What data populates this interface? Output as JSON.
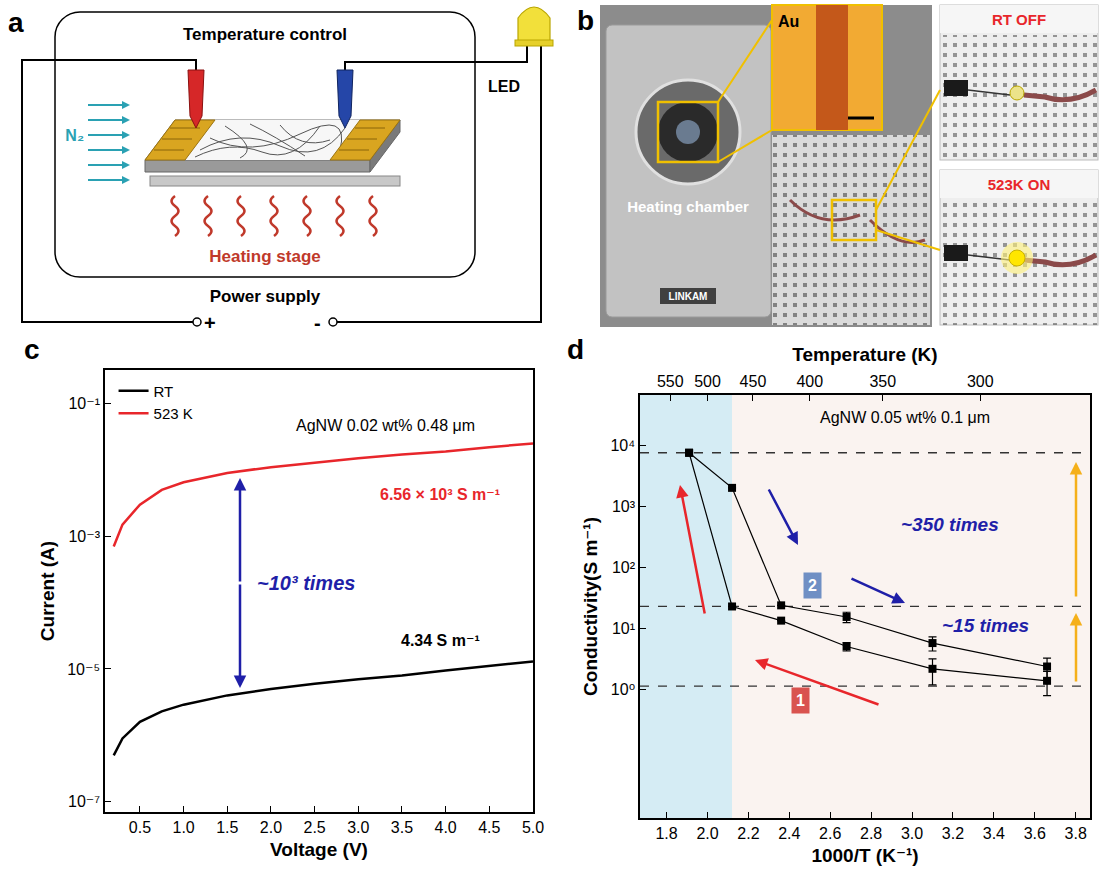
{
  "diagram": {
    "letter": "a",
    "box_title": "Temperature control",
    "gas": "N₂",
    "stage": "Heating stage",
    "led": "LED",
    "supply": "Power supply",
    "plus": "+",
    "minus": "-"
  },
  "photo": {
    "letter": "b",
    "chamber": "Heating chamber",
    "brand": "LINKAM",
    "inset": "Au",
    "off_label": "RT OFF",
    "on_label": "523K ON"
  },
  "chart_data": [
    {
      "panel": "c",
      "type": "line",
      "x_label": "Voltage (V)",
      "y_label": "Current (A)",
      "log": "y",
      "grid": false,
      "legend": "upper left",
      "xlim": [
        0.1,
        5
      ],
      "xticks": [
        0.5,
        {
          "value": 1,
          "label": "1.0"
        },
        1.5,
        {
          "value": 2,
          "label": "2.0"
        },
        2.5,
        {
          "value": 3,
          "label": "3.0"
        },
        3.5,
        {
          "value": 4,
          "label": "4.0"
        },
        4.5,
        {
          "value": 5,
          "label": "5.0"
        }
      ],
      "ylim": [
        7e-08,
        0.32
      ],
      "yticks": [
        {
          "value": 1e-07,
          "label": "10⁻⁷"
        },
        {
          "value": 1e-05,
          "label": "10⁻⁵"
        },
        {
          "value": 0.001,
          "label": "10⁻³"
        },
        {
          "value": 0.1,
          "label": "10⁻¹"
        }
      ],
      "x": [
        0.2,
        0.3,
        0.5,
        0.75,
        1,
        1.5,
        2,
        2.5,
        3,
        3.5,
        4,
        4.5,
        5
      ],
      "series": [
        {
          "name": "RT",
          "color": "#000000",
          "values": [
            5e-07,
            9e-07,
            1.6e-06,
            2.3e-06,
            2.9e-06,
            4e-06,
            5e-06,
            6e-06,
            7e-06,
            8e-06,
            9.5e-06,
            1.1e-05,
            1.3e-05
          ]
        },
        {
          "name": "523 K",
          "color": "#e8262b",
          "values": [
            0.0007,
            0.0015,
            0.003,
            0.005,
            0.0065,
            0.009,
            0.011,
            0.013,
            0.015,
            0.017,
            0.019,
            0.022,
            0.025
          ]
        }
      ],
      "annotations": [
        {
          "text": "AgNW 0.02 wt% 0.48 μm",
          "color": "#000000"
        },
        {
          "text": "6.56 × 10³ S m⁻¹",
          "color": "#e8262b"
        },
        {
          "text": "4.34 S m⁻¹",
          "color": "#000000"
        },
        {
          "text": "~10³ times",
          "color": "#1f1fa8"
        }
      ]
    },
    {
      "panel": "d",
      "type": "line",
      "marker": "square",
      "x_label": "1000/T (K⁻¹)",
      "x2_label": "Temperature (K)",
      "y_label": "Conductivity(S m⁻¹)",
      "log": "y",
      "grid": false,
      "xlim": [
        1.67,
        3.87
      ],
      "xticks": [
        1.8,
        {
          "value": 2,
          "label": "2.0"
        },
        2.2,
        2.4,
        2.6,
        2.8,
        {
          "value": 3,
          "label": "3.0"
        },
        3.2,
        3.4,
        3.6,
        3.8
      ],
      "x2ticks": [
        550,
        500,
        450,
        400,
        350,
        300
      ],
      "ylim": [
        0.008,
        66000
      ],
      "yticks": [
        {
          "value": 1,
          "label": "10⁰"
        },
        {
          "value": 10,
          "label": "10¹"
        },
        {
          "value": 100,
          "label": "10²"
        },
        {
          "value": 1000,
          "label": "10³"
        },
        {
          "value": 10000,
          "label": "10⁴"
        }
      ],
      "series": [
        {
          "name": "1",
          "color": "#000000",
          "x": [
            3.66,
            3.1,
            2.68,
            2.36,
            2.12,
            1.91
          ],
          "values": [
            1.4,
            2.2,
            5.1,
            13.5,
            23,
            7500
          ],
          "errors": [
            0.6,
            1.0,
            0.8,
            0,
            0,
            0
          ]
        },
        {
          "name": "2",
          "color": "#000000",
          "x": [
            1.91,
            2.12,
            2.36,
            2.68,
            3.1,
            3.66
          ],
          "values": [
            7500,
            2000,
            24,
            15.5,
            5.8,
            2.4
          ],
          "errors": [
            0,
            0,
            0,
            3,
            1.5,
            0.9
          ]
        }
      ],
      "hlines": [
        7500,
        23,
        1.15
      ],
      "regions": [
        {
          "x0": 1.67,
          "x1": 2.12,
          "color": "#d5ecf4"
        },
        {
          "x0": 2.12,
          "x1": 3.87,
          "color": "#faf3f0"
        }
      ],
      "annotations": [
        {
          "text": "AgNW 0.05 wt% 0.1 μm",
          "color": "#000000"
        },
        {
          "text": "~350 times",
          "color": "#1f1fa8"
        },
        {
          "text": "~15 times",
          "color": "#1f1fa8"
        }
      ]
    }
  ]
}
